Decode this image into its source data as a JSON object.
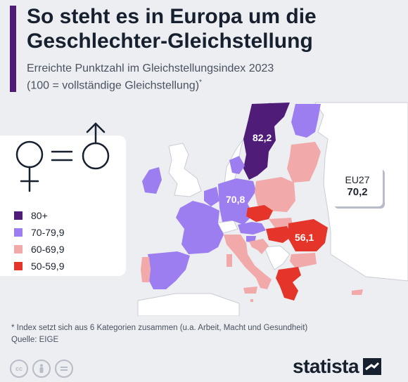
{
  "header": {
    "title": "So steht es in Europa um die Geschlechter-Gleichstellung",
    "subtitle_line1": "Erreichte Punktzahl im Gleichstellungsindex 2023",
    "subtitle_line2": "(100 = vollständige Gleichstellung)",
    "subtitle_mark": "*"
  },
  "legend": {
    "items": [
      {
        "label": "80+",
        "color": "#4f1c78"
      },
      {
        "label": "70-79,9",
        "color": "#9d7ef0"
      },
      {
        "label": "60-69,9",
        "color": "#f2a9a9"
      },
      {
        "label": "50-59,9",
        "color": "#e5352b"
      }
    ],
    "icon": "female-equals-male-icon"
  },
  "map": {
    "labels": {
      "sweden": "82,2",
      "france": "70,8",
      "romania": "56,1"
    },
    "colors": {
      "top": "#4f1c78",
      "high": "#9d7ef0",
      "mid": "#f2a9a9",
      "low": "#e5352b",
      "non_eu": "#ffffff",
      "outline": "#c9ccd4"
    },
    "eu_average": {
      "label": "EU27",
      "value": "70,2"
    }
  },
  "footer": {
    "note": "* Index setzt sich aus 6 Kategorien zusammen (u.a. Arbeit, Macht und Gesundheit)",
    "source": "Quelle: EIGE",
    "brand": "statista",
    "license_icons": [
      "cc-icon",
      "by-icon",
      "nd-icon"
    ]
  }
}
